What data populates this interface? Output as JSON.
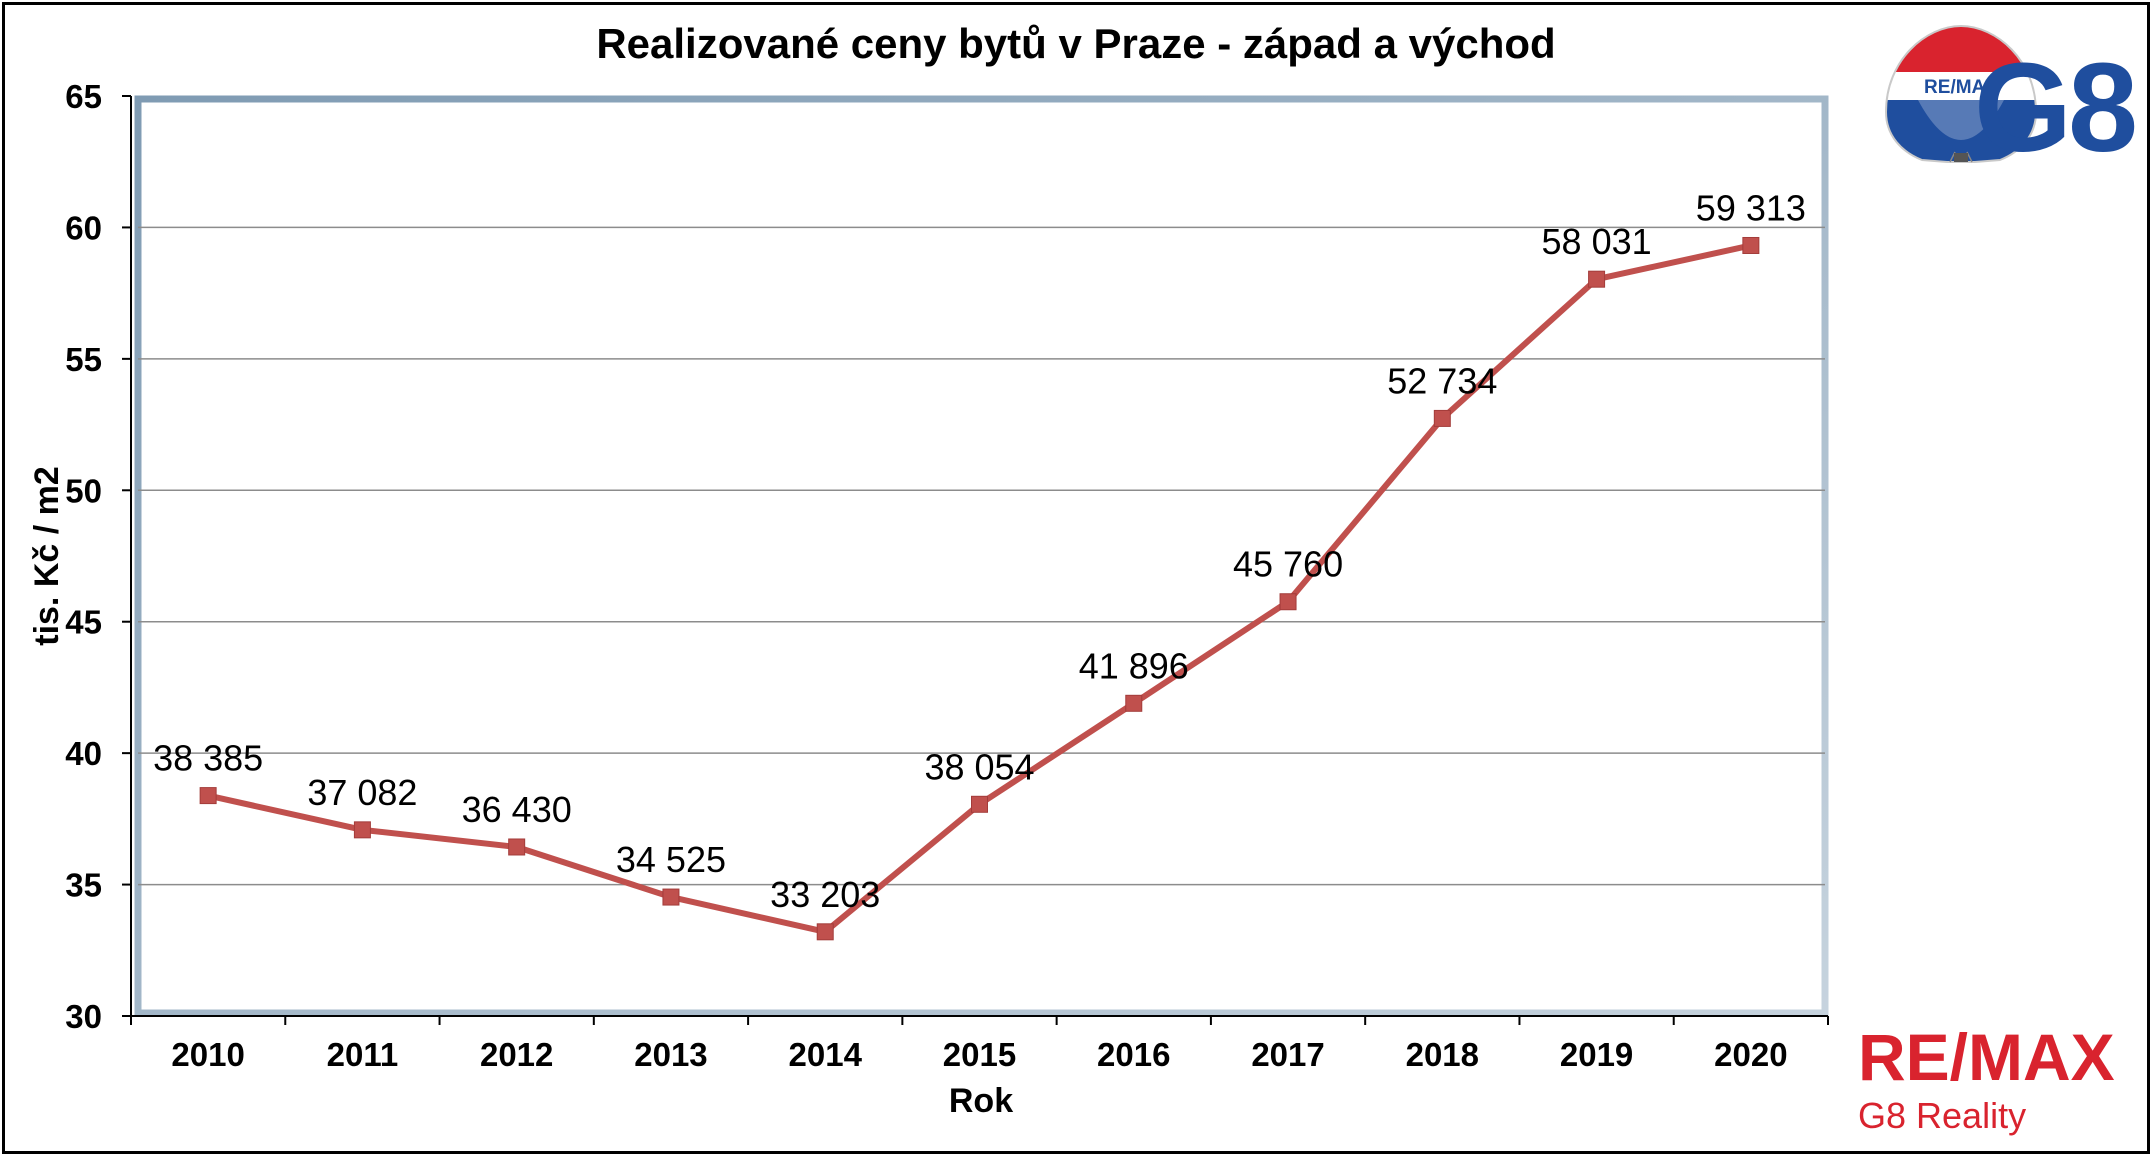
{
  "chart_data": {
    "type": "line",
    "title": "Realizované ceny bytů v Praze - západ a východ",
    "xlabel": "Rok",
    "ylabel": "tis. Kč / m2",
    "categories": [
      "2010",
      "2011",
      "2012",
      "2013",
      "2014",
      "2015",
      "2016",
      "2017",
      "2018",
      "2019",
      "2020"
    ],
    "values": [
      38.385,
      37.082,
      36.43,
      34.525,
      33.203,
      38.054,
      41.896,
      45.76,
      52.734,
      58.031,
      59.313
    ],
    "data_labels": [
      "38 385",
      "37 082",
      "36 430",
      "34 525",
      "33 203",
      "38 054",
      "41 896",
      "45 760",
      "52 734",
      "58 031",
      "59 313"
    ],
    "ylim": [
      30,
      65
    ],
    "yticks": [
      "30",
      "35",
      "40",
      "45",
      "50",
      "55",
      "60",
      "65"
    ],
    "grid": true,
    "line_color": "#c0504d"
  },
  "branding": {
    "balloon_text": "RE/MAX",
    "top_logo_text": "G8",
    "bottom_logo_text": "RE/MAX",
    "bottom_logo_sub": "G8 Reality",
    "brand_red": "#d9232e",
    "brand_blue": "#1f4e9e"
  }
}
